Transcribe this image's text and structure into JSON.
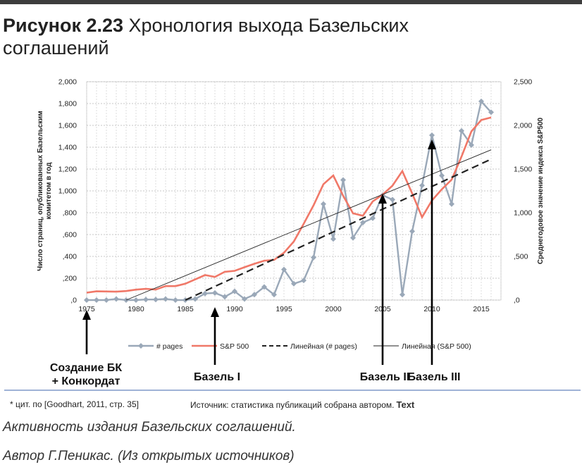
{
  "header": {
    "figure_label": "Рисунок 2.23",
    "figure_title_line1": "Хронология выхода Базельских",
    "figure_title_line2": "соглашений"
  },
  "chart_data": {
    "type": "line",
    "y_left_label": "Число страниц, опубликованных Базельским комитетом в год",
    "y_right_label": "Среднегодовое значение индекса S&P500",
    "xlim": [
      1975,
      2017
    ],
    "ylim_left": [
      0,
      2000
    ],
    "ylim_right": [
      0,
      2500
    ],
    "x_ticks": [
      1975,
      1980,
      1985,
      1990,
      1995,
      2000,
      2005,
      2010,
      2015
    ],
    "y_left_ticks": [
      0,
      200,
      400,
      600,
      800,
      1000,
      1200,
      1400,
      1600,
      1800,
      2000
    ],
    "y_left_tick_labels": [
      ",0",
      ",200",
      ",400",
      ",600",
      ",800",
      "1,000",
      "1,200",
      "1,400",
      "1,600",
      "1,800",
      "2,000"
    ],
    "y_right_ticks": [
      0,
      500,
      1000,
      1500,
      2000,
      2500
    ],
    "y_right_tick_labels": [
      ",0",
      ",500",
      "1,000",
      "1,500",
      "2,000",
      "2,500"
    ],
    "grid": true,
    "legend_position": "bottom",
    "series": [
      {
        "name": "# pages",
        "axis": "left",
        "color": "#9aa8b8",
        "marker": "diamond",
        "x": [
          1975,
          1976,
          1977,
          1978,
          1979,
          1980,
          1981,
          1982,
          1983,
          1984,
          1985,
          1986,
          1987,
          1988,
          1989,
          1990,
          1991,
          1992,
          1993,
          1994,
          1995,
          1996,
          1997,
          1998,
          1999,
          2000,
          2001,
          2002,
          2003,
          2004,
          2005,
          2006,
          2007,
          2008,
          2009,
          2010,
          2011,
          2012,
          2013,
          2014,
          2015,
          2016
        ],
        "values": [
          0,
          0,
          0,
          10,
          0,
          0,
          5,
          5,
          10,
          0,
          0,
          10,
          60,
          65,
          30,
          80,
          10,
          50,
          120,
          50,
          280,
          150,
          180,
          390,
          880,
          560,
          1100,
          570,
          710,
          750,
          960,
          920,
          50,
          630,
          1050,
          1510,
          1140,
          880,
          1550,
          1420,
          1820,
          1720
        ]
      },
      {
        "name": "S&P 500",
        "axis": "right",
        "color": "#f07868",
        "x": [
          1975,
          1976,
          1977,
          1978,
          1979,
          1980,
          1981,
          1982,
          1983,
          1984,
          1985,
          1986,
          1987,
          1988,
          1989,
          1990,
          1991,
          1992,
          1993,
          1994,
          1995,
          1996,
          1997,
          1998,
          1999,
          2000,
          2001,
          2002,
          2003,
          2004,
          2005,
          2006,
          2007,
          2008,
          2009,
          2010,
          2011,
          2012,
          2013,
          2014,
          2015,
          2016
        ],
        "values": [
          85,
          100,
          98,
          96,
          103,
          119,
          128,
          120,
          160,
          160,
          187,
          236,
          286,
          265,
          323,
          335,
          376,
          415,
          451,
          460,
          542,
          670,
          873,
          1085,
          1327,
          1427,
          1194,
          993,
          965,
          1130,
          1207,
          1310,
          1477,
          1220,
          948,
          1140,
          1268,
          1379,
          1643,
          1931,
          2061,
          2090
        ]
      },
      {
        "name": "Линейная (# pages)",
        "axis": "left",
        "color": "#222222",
        "style": "dashed",
        "x": [
          1985,
          2016
        ],
        "values": [
          0,
          1290
        ]
      },
      {
        "name": "Линейная (S&P 500)",
        "axis": "right",
        "color": "#222222",
        "style": "solid-thin",
        "x": [
          1979,
          2016
        ],
        "values": [
          0,
          1720
        ]
      }
    ],
    "annotations": [
      {
        "year": 1975,
        "line1": "Создание БК",
        "line2": "+ Конкордат"
      },
      {
        "year": 1988,
        "line1": "Базель I",
        "line2": ""
      },
      {
        "year": 2005,
        "line1": "Базель II",
        "line2": ""
      },
      {
        "year": 2010,
        "line1": "Базель III",
        "line2": ""
      }
    ]
  },
  "footer": {
    "note": "* цит. по [Goodhart, 2011, стр. 35]",
    "source": "Источник: статистика публикаций собрана автором.",
    "text_mark": "Text"
  },
  "captions": {
    "line1": "Активность издания Базельских соглашений.",
    "line2": "Автор Г.Пеникас. (Из открытых источников)"
  }
}
